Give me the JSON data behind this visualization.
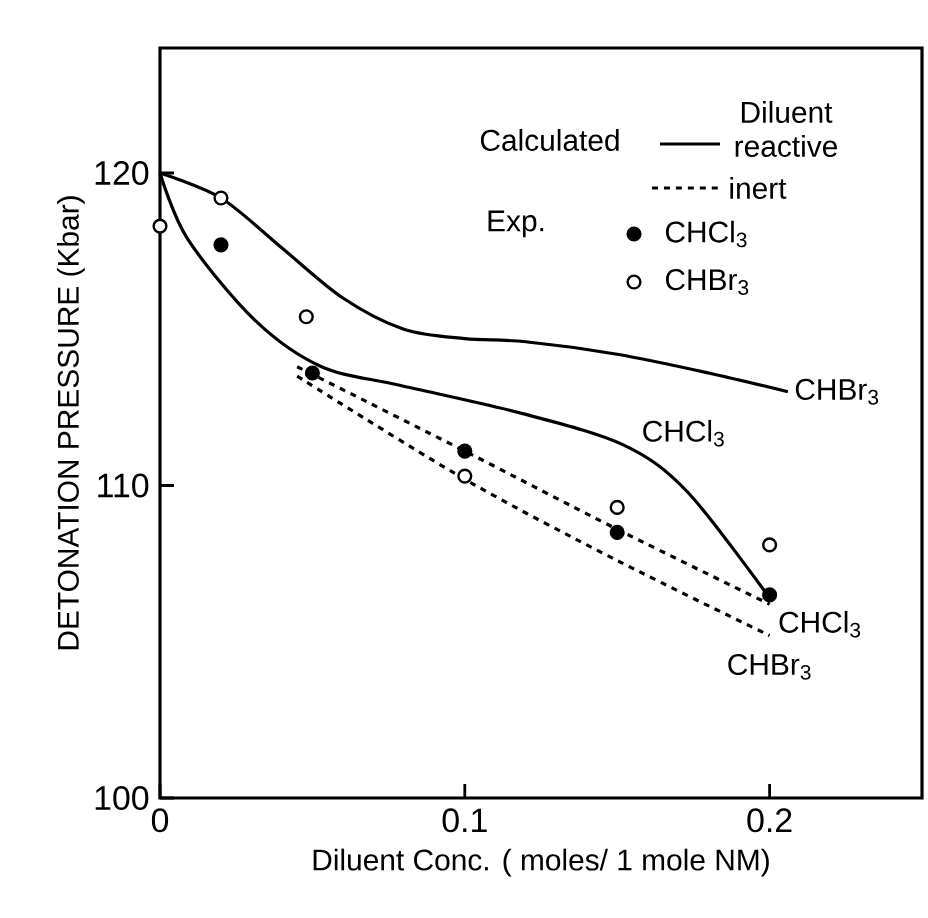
{
  "chart_data": {
    "type": "line",
    "xlabel": "Diluent Conc. ( moles/ 1 mole NM)",
    "ylabel": "DETONATION PRESSURE (Kbar)",
    "xlim": [
      0,
      0.25
    ],
    "ylim": [
      100,
      124
    ],
    "xticks": [
      0,
      0.1,
      0.2
    ],
    "yticks": [
      100,
      110,
      120
    ],
    "legend": "top right",
    "grid": false,
    "annotations": [
      "Calculated",
      "Diluent",
      "reactive",
      "inert",
      "Exp."
    ],
    "series": [
      {
        "name": "CHBr$_{3}$",
        "line_style": "solid",
        "marker": "none",
        "color": "#000000",
        "x": [
          0,
          0.02,
          0.04,
          0.06,
          0.08,
          0.1,
          0.12,
          0.15,
          0.18,
          0.206
        ],
        "values": [
          120,
          119.2,
          117.6,
          116.0,
          115.0,
          114.7,
          114.6,
          114.2,
          113.6,
          113.0
        ]
      },
      {
        "name": "CHCl$_{3}$",
        "line_style": "solid",
        "marker": "none",
        "color": "#000000",
        "x": [
          0,
          0.009,
          0.031,
          0.053,
          0.079,
          0.119,
          0.152,
          0.173,
          0.2
        ],
        "values": [
          120,
          117.9,
          115.3,
          113.8,
          113.2,
          112.3,
          111.3,
          109.8,
          106.4
        ]
      },
      {
        "name": "CHCl$_{3}$",
        "line_style": "dashed",
        "marker": "none",
        "color": "#000000",
        "x": [
          0.045,
          0.1,
          0.15,
          0.2
        ],
        "values": [
          113.8,
          111.1,
          108.6,
          106.2
        ]
      },
      {
        "name": "CHBr$_{3}$",
        "line_style": "dashed",
        "marker": "none",
        "color": "#000000",
        "x": [
          0.045,
          0.1,
          0.15,
          0.2
        ],
        "values": [
          113.5,
          110.2,
          107.6,
          105.2
        ]
      },
      {
        "name": "CHCl$_{3}$",
        "type": "scatter",
        "marker": "circle",
        "color": "#000000",
        "x": [
          0.02,
          0.05,
          0.1,
          0.15,
          0.2
        ],
        "values": [
          117.7,
          113.6,
          111.1,
          108.5,
          106.5
        ]
      },
      {
        "name": "CHBr$_{3}$",
        "type": "scatter",
        "marker": "circle",
        "color": "#000000",
        "x": [
          0,
          0.02,
          0.048,
          0.1,
          0.15,
          0.2
        ],
        "values": [
          118.3,
          119.2,
          115.4,
          110.3,
          109.3,
          108.1
        ]
      }
    ]
  }
}
